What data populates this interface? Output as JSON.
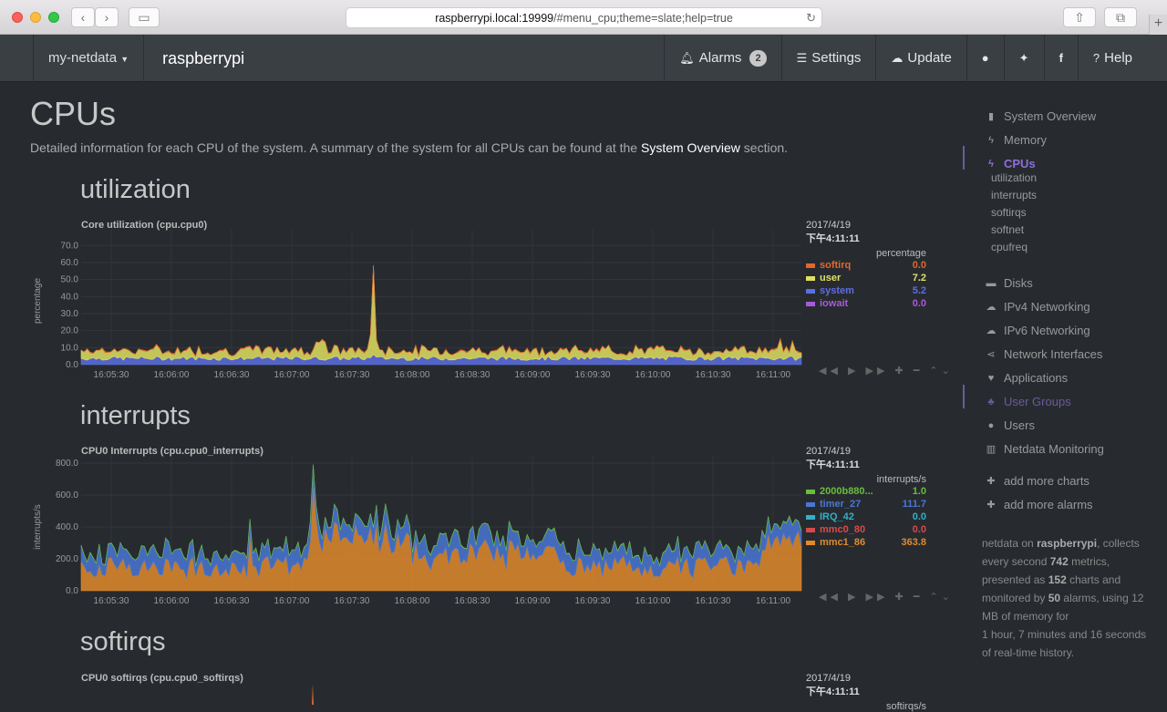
{
  "browser": {
    "url_host": "raspberrypi.local:19999",
    "url_rest": "/#menu_cpu;theme=slate;help=true"
  },
  "navbar": {
    "brand": "my-netdata",
    "hostname": "raspberrypi",
    "alarms_label": "Alarms",
    "alarms_count": "2",
    "settings_label": "Settings",
    "update_label": "Update",
    "help_label": "Help"
  },
  "page": {
    "title": "CPUs",
    "description_pre": "Detailed information for each CPU of the system. A summary of the system for all CPUs can be found at the ",
    "description_link": "System Overview",
    "description_post": " section."
  },
  "sections": {
    "utilization": "utilization",
    "interrupts": "interrupts",
    "softirqs": "softirqs"
  },
  "charts": {
    "utilization": {
      "title": "Core utilization (cpu.cpu0)",
      "ylabel": "percentage",
      "date": "2017/4/19",
      "time": "下午4:11:11",
      "units": "percentage",
      "yticks": [
        "70.0",
        "60.0",
        "50.0",
        "40.0",
        "30.0",
        "20.0",
        "10.0",
        "0.0"
      ],
      "xticks": [
        "16:05:30",
        "16:06:00",
        "16:06:30",
        "16:07:00",
        "16:07:30",
        "16:08:00",
        "16:08:30",
        "16:09:00",
        "16:09:30",
        "16:10:00",
        "16:10:30",
        "16:11:00"
      ],
      "legend": [
        {
          "name": "softirq",
          "value": "0.0",
          "color": "#e0682c"
        },
        {
          "name": "user",
          "value": "7.2",
          "color": "#e0e060"
        },
        {
          "name": "system",
          "value": "5.2",
          "color": "#5d6ee0"
        },
        {
          "name": "iowait",
          "value": "0.0",
          "color": "#a75ad8"
        }
      ]
    },
    "interrupts": {
      "title": "CPU0 Interrupts (cpu.cpu0_interrupts)",
      "ylabel": "interrupts/s",
      "date": "2017/4/19",
      "time": "下午4:11:11",
      "units": "interrupts/s",
      "yticks": [
        "800.0",
        "600.0",
        "400.0",
        "200.0",
        "0.0"
      ],
      "xticks": [
        "16:05:30",
        "16:06:00",
        "16:06:30",
        "16:07:00",
        "16:07:30",
        "16:08:00",
        "16:08:30",
        "16:09:00",
        "16:09:30",
        "16:10:00",
        "16:10:30",
        "16:11:00"
      ],
      "legend": [
        {
          "name": "2000b880...",
          "value": "1.0",
          "color": "#6bbd3b"
        },
        {
          "name": "timer_27",
          "value": "111.7",
          "color": "#4a77d4"
        },
        {
          "name": "IRQ_42",
          "value": "0.0",
          "color": "#30b0c8"
        },
        {
          "name": "mmc0_80",
          "value": "0.0",
          "color": "#d84a4a"
        },
        {
          "name": "mmc1_86",
          "value": "363.8",
          "color": "#e08a2c"
        }
      ]
    },
    "softirqs": {
      "title": "CPU0 softirqs (cpu.cpu0_softirqs)",
      "date": "2017/4/19",
      "time": "下午4:11:11",
      "units": "softirqs/s"
    }
  },
  "sidebar": {
    "items": [
      {
        "label": "System Overview",
        "icon": "bookmark-icon"
      },
      {
        "label": "Memory",
        "icon": "bolt-icon"
      },
      {
        "label": "CPUs",
        "icon": "bolt-icon"
      },
      {
        "label": "Disks",
        "icon": "folder-icon"
      },
      {
        "label": "IPv4 Networking",
        "icon": "cloud-icon"
      },
      {
        "label": "IPv6 Networking",
        "icon": "cloud-icon"
      },
      {
        "label": "Network Interfaces",
        "icon": "share-icon"
      },
      {
        "label": "Applications",
        "icon": "heartbeat-icon"
      },
      {
        "label": "User Groups",
        "icon": "users-icon"
      },
      {
        "label": "Users",
        "icon": "user-icon"
      },
      {
        "label": "Netdata Monitoring",
        "icon": "bar-chart-icon"
      }
    ],
    "sub_items": [
      "utilization",
      "interrupts",
      "softirqs",
      "softnet",
      "cpufreq"
    ],
    "add_charts": "add more charts",
    "add_alarms": "add more alarms",
    "info": {
      "p1": "netdata on ",
      "host": "raspberrypi",
      "p2": ", collects every second ",
      "metrics": "742",
      "p3": " metrics, presented as ",
      "charts": "152",
      "p4": " charts and monitored by ",
      "alarms": "50",
      "p5": " alarms, using 12 MB of memory for",
      "p6": "1 hour, 7 minutes and 16 seconds of real-time history."
    }
  }
}
